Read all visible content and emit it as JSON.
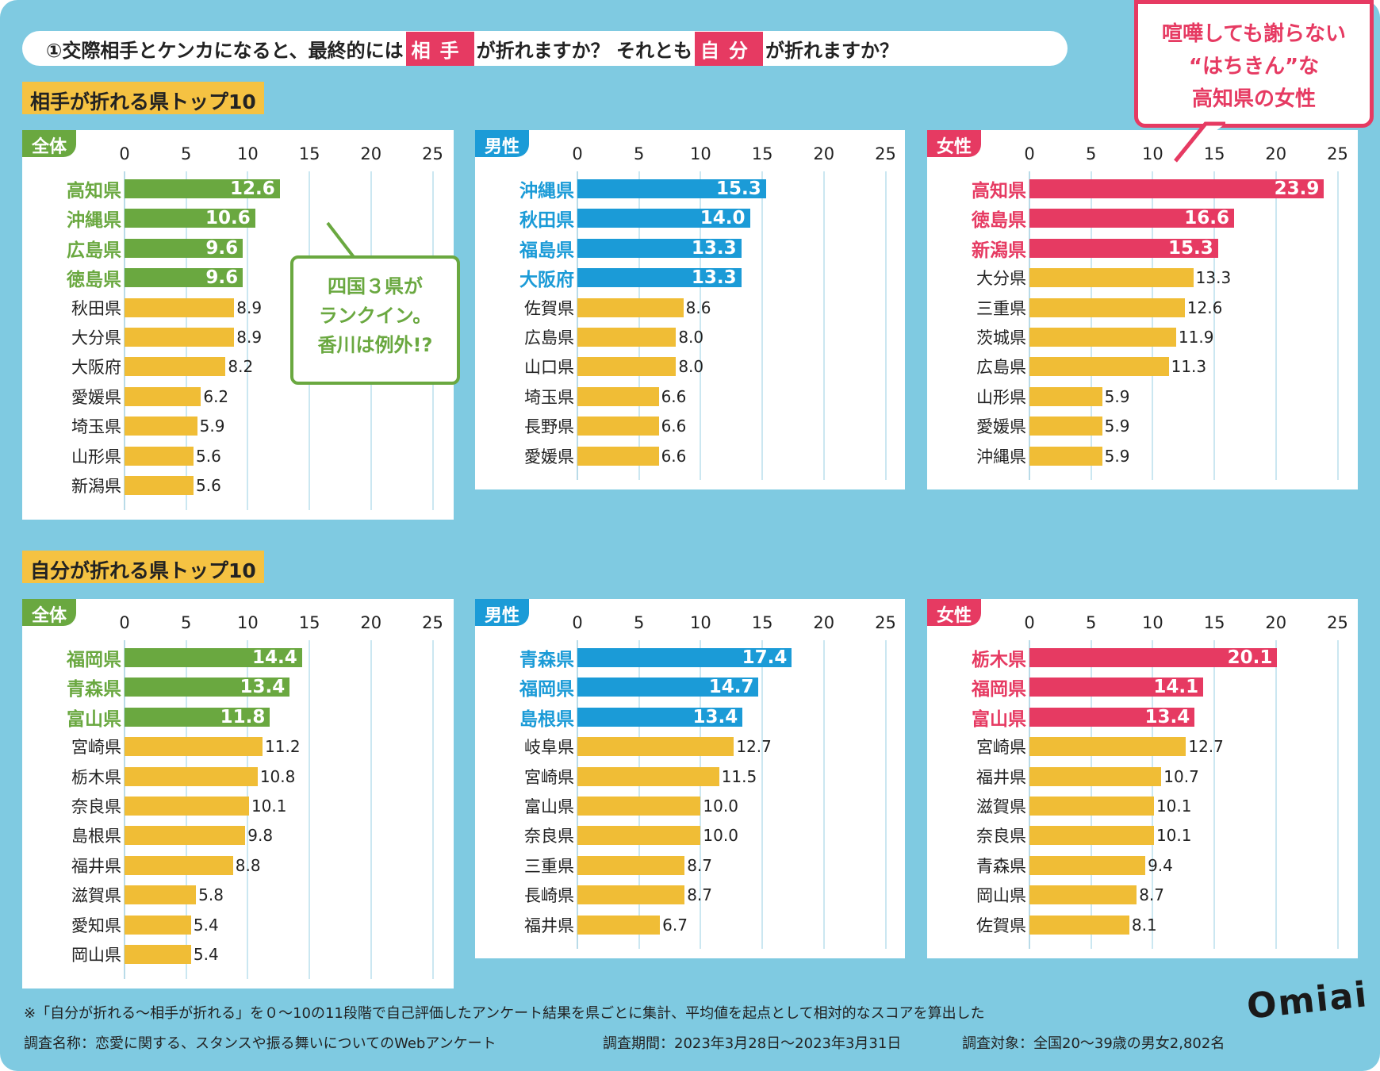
{
  "title": {
    "pre": "①交際相手とケンカになると、最終的には",
    "h1": "相手",
    "mid": "が折れますか？ それとも",
    "h2": "自分",
    "post": "が折れますか？"
  },
  "sections": [
    "相手が折れる県トップ10",
    "自分が折れる県トップ10"
  ],
  "colors": {
    "全体": "#6aa840",
    "男性": "#1b9bd7",
    "女性": "#e63a62",
    "other": "#f0bd36",
    "background": "#7fcae1"
  },
  "callouts": {
    "green": [
      "四国３県が",
      "ランクイン。",
      "香川は例外!?"
    ],
    "pink": [
      "喧嘩しても謝らない",
      "“はちきん”な",
      "高知県の女性"
    ]
  },
  "footer": {
    "note": "※「自分が折れる～相手が折れる」を０～10の11段階で自己評価したアンケート結果を県ごとに集計、平均値を起点として相対的なスコアを算出した",
    "survey": "調査名称：恋愛に関する、スタンスや振る舞いについてのWebアンケート",
    "period": "調査期間：2023年3月28日～2023年3月31日",
    "target": "調査対象：全国20～39歳の男女2,802名"
  },
  "logo": "Omiai",
  "chart_data": [
    {
      "type": "bar",
      "orientation": "horizontal",
      "section": "相手が折れる県トップ10",
      "tag": "全体",
      "xlim": [
        0,
        25
      ],
      "ticks": [
        0,
        5,
        10,
        15,
        20,
        25
      ],
      "highlight": 4,
      "categories": [
        "高知県",
        "沖縄県",
        "広島県",
        "徳島県",
        "秋田県",
        "大分県",
        "大阪府",
        "愛媛県",
        "埼玉県",
        "山形県",
        "新潟県"
      ],
      "values": [
        12.6,
        10.6,
        9.6,
        9.6,
        8.9,
        8.9,
        8.2,
        6.2,
        5.9,
        5.6,
        5.6
      ]
    },
    {
      "type": "bar",
      "orientation": "horizontal",
      "section": "相手が折れる県トップ10",
      "tag": "男性",
      "xlim": [
        0,
        25
      ],
      "ticks": [
        0,
        5,
        10,
        15,
        20,
        25
      ],
      "highlight": 4,
      "categories": [
        "沖縄県",
        "秋田県",
        "福島県",
        "大阪府",
        "佐賀県",
        "広島県",
        "山口県",
        "埼玉県",
        "長野県",
        "愛媛県"
      ],
      "values": [
        15.3,
        14.0,
        13.3,
        13.3,
        8.6,
        8.0,
        8.0,
        6.6,
        6.6,
        6.6
      ]
    },
    {
      "type": "bar",
      "orientation": "horizontal",
      "section": "相手が折れる県トップ10",
      "tag": "女性",
      "xlim": [
        0,
        25
      ],
      "ticks": [
        0,
        5,
        10,
        15,
        20,
        25
      ],
      "highlight": 3,
      "categories": [
        "高知県",
        "徳島県",
        "新潟県",
        "大分県",
        "三重県",
        "茨城県",
        "広島県",
        "山形県",
        "愛媛県",
        "沖縄県"
      ],
      "values": [
        23.9,
        16.6,
        15.3,
        13.3,
        12.6,
        11.9,
        11.3,
        5.9,
        5.9,
        5.9
      ]
    },
    {
      "type": "bar",
      "orientation": "horizontal",
      "section": "自分が折れる県トップ10",
      "tag": "全体",
      "xlim": [
        0,
        25
      ],
      "ticks": [
        0,
        5,
        10,
        15,
        20,
        25
      ],
      "highlight": 3,
      "categories": [
        "福岡県",
        "青森県",
        "富山県",
        "宮崎県",
        "栃木県",
        "奈良県",
        "島根県",
        "福井県",
        "滋賀県",
        "愛知県",
        "岡山県"
      ],
      "values": [
        14.4,
        13.4,
        11.8,
        11.2,
        10.8,
        10.1,
        9.8,
        8.8,
        5.8,
        5.4,
        5.4
      ]
    },
    {
      "type": "bar",
      "orientation": "horizontal",
      "section": "自分が折れる県トップ10",
      "tag": "男性",
      "xlim": [
        0,
        25
      ],
      "ticks": [
        0,
        5,
        10,
        15,
        20,
        25
      ],
      "highlight": 3,
      "categories": [
        "青森県",
        "福岡県",
        "島根県",
        "岐阜県",
        "宮崎県",
        "富山県",
        "奈良県",
        "三重県",
        "長崎県",
        "福井県"
      ],
      "values": [
        17.4,
        14.7,
        13.4,
        12.7,
        11.5,
        10.0,
        10.0,
        8.7,
        8.7,
        6.7
      ]
    },
    {
      "type": "bar",
      "orientation": "horizontal",
      "section": "自分が折れる県トップ10",
      "tag": "女性",
      "xlim": [
        0,
        25
      ],
      "ticks": [
        0,
        5,
        10,
        15,
        20,
        25
      ],
      "highlight": 3,
      "categories": [
        "栃木県",
        "福岡県",
        "富山県",
        "宮崎県",
        "福井県",
        "滋賀県",
        "奈良県",
        "青森県",
        "岡山県",
        "佐賀県"
      ],
      "values": [
        20.1,
        14.1,
        13.4,
        12.7,
        10.7,
        10.1,
        10.1,
        9.4,
        8.7,
        8.1
      ]
    }
  ]
}
